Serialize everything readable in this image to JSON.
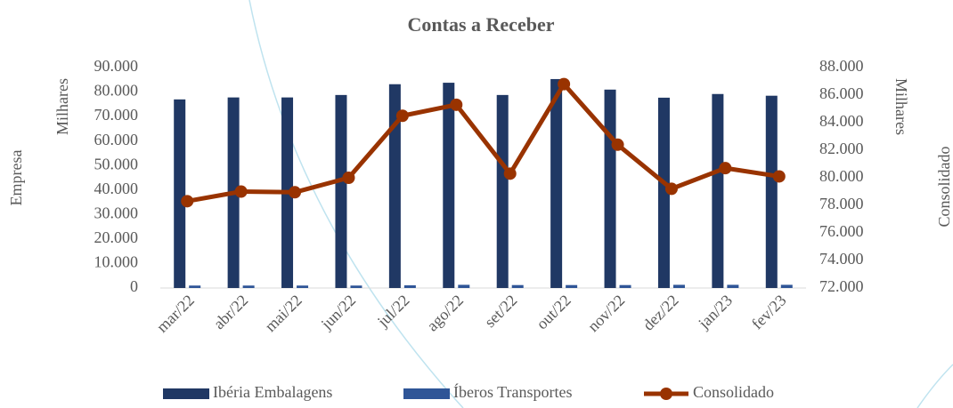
{
  "chart_data": {
    "type": "bar",
    "title": "Contas a Receber",
    "y_label": "Empresa",
    "y_unit": "Milhares",
    "y2_label": "Consolidado",
    "y2_unit": "Milhares",
    "categories": [
      "mar/22",
      "abr/22",
      "mai/22",
      "jun/22",
      "jul/22",
      "ago/22",
      "set/22",
      "out/22",
      "nov/22",
      "dez/22",
      "jan/23",
      "fev/23"
    ],
    "series": [
      {
        "name": "Ibéria Embalagens",
        "type": "bar",
        "color": "#203864",
        "values": [
          77000,
          77800,
          77800,
          78800,
          83200,
          83800,
          78800,
          85300,
          81000,
          77700,
          79200,
          78500
        ]
      },
      {
        "name": "Íberos Transportes",
        "type": "bar",
        "color": "#2f5597",
        "values": [
          1000,
          1000,
          1000,
          1000,
          1100,
          1300,
          1200,
          1200,
          1200,
          1300,
          1300,
          1300
        ]
      },
      {
        "name": "Consolidado",
        "type": "line",
        "axis": "y2",
        "color": "#993300",
        "values": [
          78300,
          79000,
          78950,
          80000,
          84500,
          85300,
          80300,
          86800,
          82400,
          79200,
          80700,
          80100
        ]
      }
    ],
    "ylim": [
      0,
      90000
    ],
    "yticks": [
      0,
      {
        "value": 10000,
        "label": "10.000"
      },
      {
        "value": 20000,
        "label": "20.000"
      },
      {
        "value": 30000,
        "label": "30.000"
      },
      {
        "value": 40000,
        "label": "40.000"
      },
      {
        "value": 50000,
        "label": "50.000"
      },
      {
        "value": 60000,
        "label": "60.000"
      },
      {
        "value": 70000,
        "label": "70.000"
      },
      {
        "value": 80000,
        "label": "80.000"
      },
      {
        "value": 90000,
        "label": "90.000"
      }
    ],
    "y2lim": [
      72000,
      88000
    ],
    "y2ticks": [
      {
        "value": 72000,
        "label": "72.000"
      },
      {
        "value": 74000,
        "label": "74.000"
      },
      {
        "value": 76000,
        "label": "76.000"
      },
      {
        "value": 78000,
        "label": "78.000"
      },
      {
        "value": 80000,
        "label": "80.000"
      },
      {
        "value": 82000,
        "label": "82.000"
      },
      {
        "value": 84000,
        "label": "84.000"
      },
      {
        "value": 86000,
        "label": "86.000"
      },
      {
        "value": 88000,
        "label": "88.000"
      }
    ],
    "legend": "bottom"
  }
}
